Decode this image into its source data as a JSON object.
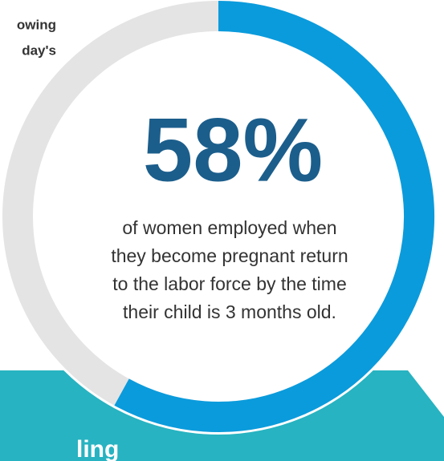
{
  "fragments": [
    "owing",
    "day's"
  ],
  "band_text": "ling",
  "chart_data": {
    "type": "donut",
    "value": 58,
    "value_label": "58%",
    "range": [
      0,
      100
    ],
    "color": "#0a9bdc",
    "track_color": "#e4e4e4",
    "description": [
      "of women employed when",
      "they become pregnant return",
      "to the labor force by the time",
      "their child is 3 months old."
    ]
  }
}
